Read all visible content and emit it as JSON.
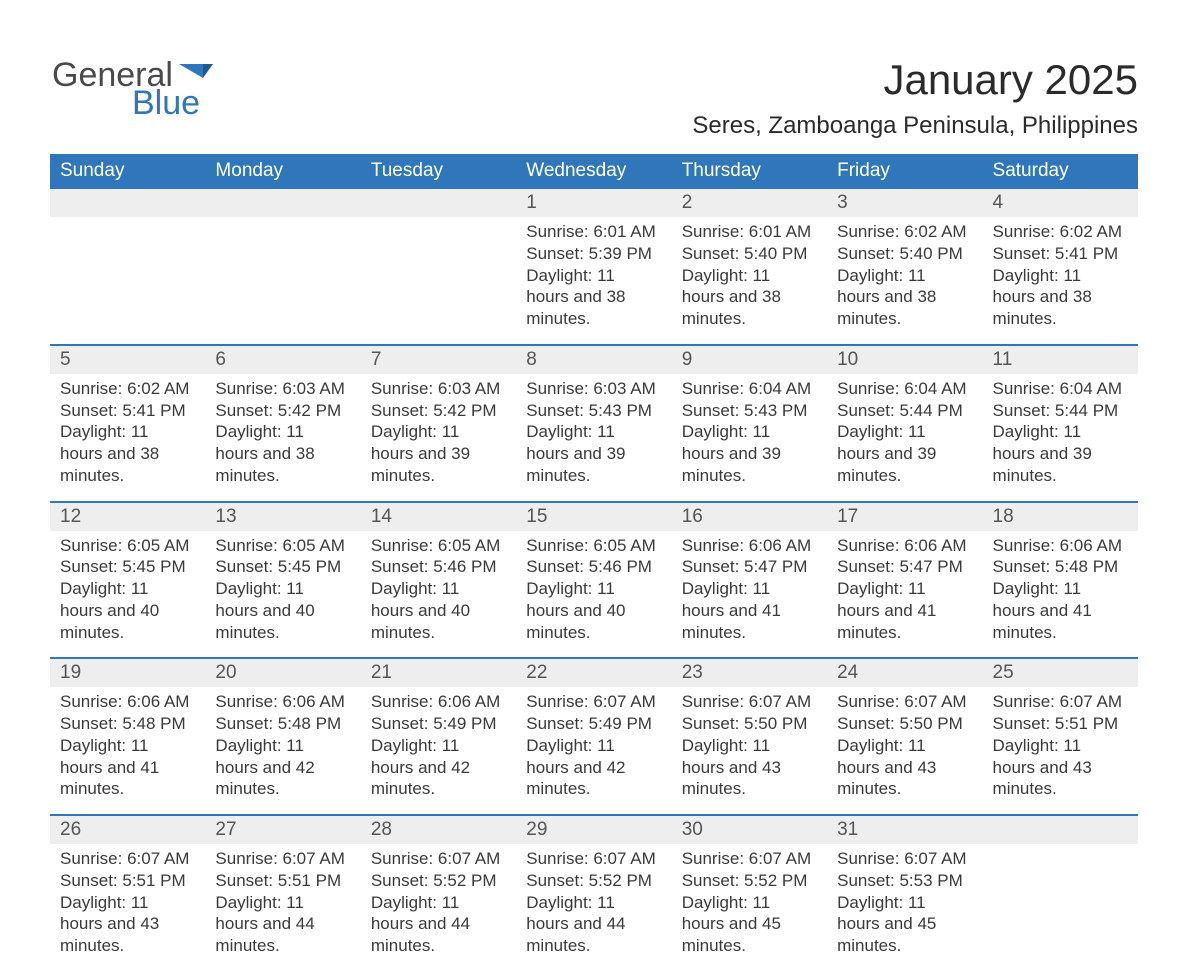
{
  "brand": {
    "word1": "General",
    "word2": "Blue"
  },
  "title": "January 2025",
  "location": "Seres, Zamboanga Peninsula, Philippines",
  "colors": {
    "accent": "#2f76bb",
    "header_text": "#ffffff",
    "daynum_bg": "#eeeeee",
    "body_text": "#3a3a3a",
    "page_bg": "#ffffff"
  },
  "weekdays": [
    "Sunday",
    "Monday",
    "Tuesday",
    "Wednesday",
    "Thursday",
    "Friday",
    "Saturday"
  ],
  "weeks": [
    [
      null,
      null,
      null,
      {
        "n": "1",
        "sr": "Sunrise: 6:01 AM",
        "ss": "Sunset: 5:39 PM",
        "dl": "Daylight: 11 hours and 38 minutes."
      },
      {
        "n": "2",
        "sr": "Sunrise: 6:01 AM",
        "ss": "Sunset: 5:40 PM",
        "dl": "Daylight: 11 hours and 38 minutes."
      },
      {
        "n": "3",
        "sr": "Sunrise: 6:02 AM",
        "ss": "Sunset: 5:40 PM",
        "dl": "Daylight: 11 hours and 38 minutes."
      },
      {
        "n": "4",
        "sr": "Sunrise: 6:02 AM",
        "ss": "Sunset: 5:41 PM",
        "dl": "Daylight: 11 hours and 38 minutes."
      }
    ],
    [
      {
        "n": "5",
        "sr": "Sunrise: 6:02 AM",
        "ss": "Sunset: 5:41 PM",
        "dl": "Daylight: 11 hours and 38 minutes."
      },
      {
        "n": "6",
        "sr": "Sunrise: 6:03 AM",
        "ss": "Sunset: 5:42 PM",
        "dl": "Daylight: 11 hours and 38 minutes."
      },
      {
        "n": "7",
        "sr": "Sunrise: 6:03 AM",
        "ss": "Sunset: 5:42 PM",
        "dl": "Daylight: 11 hours and 39 minutes."
      },
      {
        "n": "8",
        "sr": "Sunrise: 6:03 AM",
        "ss": "Sunset: 5:43 PM",
        "dl": "Daylight: 11 hours and 39 minutes."
      },
      {
        "n": "9",
        "sr": "Sunrise: 6:04 AM",
        "ss": "Sunset: 5:43 PM",
        "dl": "Daylight: 11 hours and 39 minutes."
      },
      {
        "n": "10",
        "sr": "Sunrise: 6:04 AM",
        "ss": "Sunset: 5:44 PM",
        "dl": "Daylight: 11 hours and 39 minutes."
      },
      {
        "n": "11",
        "sr": "Sunrise: 6:04 AM",
        "ss": "Sunset: 5:44 PM",
        "dl": "Daylight: 11 hours and 39 minutes."
      }
    ],
    [
      {
        "n": "12",
        "sr": "Sunrise: 6:05 AM",
        "ss": "Sunset: 5:45 PM",
        "dl": "Daylight: 11 hours and 40 minutes."
      },
      {
        "n": "13",
        "sr": "Sunrise: 6:05 AM",
        "ss": "Sunset: 5:45 PM",
        "dl": "Daylight: 11 hours and 40 minutes."
      },
      {
        "n": "14",
        "sr": "Sunrise: 6:05 AM",
        "ss": "Sunset: 5:46 PM",
        "dl": "Daylight: 11 hours and 40 minutes."
      },
      {
        "n": "15",
        "sr": "Sunrise: 6:05 AM",
        "ss": "Sunset: 5:46 PM",
        "dl": "Daylight: 11 hours and 40 minutes."
      },
      {
        "n": "16",
        "sr": "Sunrise: 6:06 AM",
        "ss": "Sunset: 5:47 PM",
        "dl": "Daylight: 11 hours and 41 minutes."
      },
      {
        "n": "17",
        "sr": "Sunrise: 6:06 AM",
        "ss": "Sunset: 5:47 PM",
        "dl": "Daylight: 11 hours and 41 minutes."
      },
      {
        "n": "18",
        "sr": "Sunrise: 6:06 AM",
        "ss": "Sunset: 5:48 PM",
        "dl": "Daylight: 11 hours and 41 minutes."
      }
    ],
    [
      {
        "n": "19",
        "sr": "Sunrise: 6:06 AM",
        "ss": "Sunset: 5:48 PM",
        "dl": "Daylight: 11 hours and 41 minutes."
      },
      {
        "n": "20",
        "sr": "Sunrise: 6:06 AM",
        "ss": "Sunset: 5:48 PM",
        "dl": "Daylight: 11 hours and 42 minutes."
      },
      {
        "n": "21",
        "sr": "Sunrise: 6:06 AM",
        "ss": "Sunset: 5:49 PM",
        "dl": "Daylight: 11 hours and 42 minutes."
      },
      {
        "n": "22",
        "sr": "Sunrise: 6:07 AM",
        "ss": "Sunset: 5:49 PM",
        "dl": "Daylight: 11 hours and 42 minutes."
      },
      {
        "n": "23",
        "sr": "Sunrise: 6:07 AM",
        "ss": "Sunset: 5:50 PM",
        "dl": "Daylight: 11 hours and 43 minutes."
      },
      {
        "n": "24",
        "sr": "Sunrise: 6:07 AM",
        "ss": "Sunset: 5:50 PM",
        "dl": "Daylight: 11 hours and 43 minutes."
      },
      {
        "n": "25",
        "sr": "Sunrise: 6:07 AM",
        "ss": "Sunset: 5:51 PM",
        "dl": "Daylight: 11 hours and 43 minutes."
      }
    ],
    [
      {
        "n": "26",
        "sr": "Sunrise: 6:07 AM",
        "ss": "Sunset: 5:51 PM",
        "dl": "Daylight: 11 hours and 43 minutes."
      },
      {
        "n": "27",
        "sr": "Sunrise: 6:07 AM",
        "ss": "Sunset: 5:51 PM",
        "dl": "Daylight: 11 hours and 44 minutes."
      },
      {
        "n": "28",
        "sr": "Sunrise: 6:07 AM",
        "ss": "Sunset: 5:52 PM",
        "dl": "Daylight: 11 hours and 44 minutes."
      },
      {
        "n": "29",
        "sr": "Sunrise: 6:07 AM",
        "ss": "Sunset: 5:52 PM",
        "dl": "Daylight: 11 hours and 44 minutes."
      },
      {
        "n": "30",
        "sr": "Sunrise: 6:07 AM",
        "ss": "Sunset: 5:52 PM",
        "dl": "Daylight: 11 hours and 45 minutes."
      },
      {
        "n": "31",
        "sr": "Sunrise: 6:07 AM",
        "ss": "Sunset: 5:53 PM",
        "dl": "Daylight: 11 hours and 45 minutes."
      },
      null
    ]
  ]
}
